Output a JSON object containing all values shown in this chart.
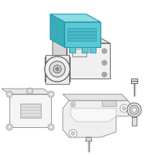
{
  "bg_color": "#ffffff",
  "highlight_color": "#5bc8d4",
  "highlight_top": "#8ddde5",
  "highlight_side": "#3aacb8",
  "highlight_edge": "#2299aa",
  "body_face": "#f0f0f0",
  "body_top": "#e2e2e2",
  "body_side": "#d5d5d5",
  "body_edge": "#666666",
  "light_edge": "#999999",
  "lighter_edge": "#bbbbbb",
  "mod_face": "#f5f5f5",
  "bracket_face": "#eeeeee",
  "bracket_top": "#e0e0e0"
}
